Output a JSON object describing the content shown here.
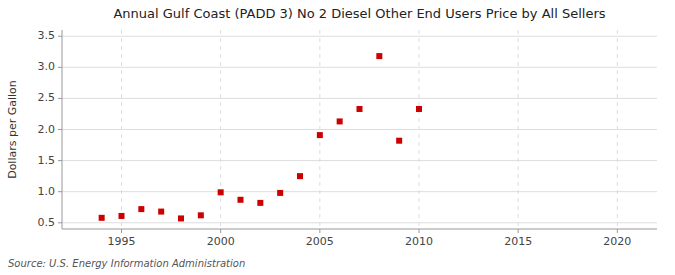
{
  "chart_data": {
    "type": "scatter",
    "title": "Annual Gulf Coast (PADD 3) No 2 Diesel Other End Users Price by All Sellers",
    "y_label": "Dollars per Gallon",
    "source": "Source: U.S. Energy Information Administration",
    "x": [
      1994,
      1995,
      1996,
      1997,
      1998,
      1999,
      2000,
      2001,
      2002,
      2003,
      2004,
      2005,
      2006,
      2007,
      2008,
      2009,
      2010
    ],
    "values": [
      0.58,
      0.61,
      0.72,
      0.68,
      0.57,
      0.62,
      0.99,
      0.87,
      0.82,
      0.98,
      1.25,
      1.91,
      2.13,
      2.33,
      3.18,
      1.82,
      2.33
    ],
    "color": "#cc0000",
    "marker": "square",
    "xlim": [
      1992,
      2022
    ],
    "ylim": [
      0.4,
      3.6
    ],
    "xticks": [
      1995,
      2000,
      2005,
      2010,
      2015,
      2020
    ],
    "yticks": [
      0.5,
      {
        "value": 1.0,
        "label": "1.0"
      },
      1.5,
      {
        "value": 2.0,
        "label": "2.0"
      },
      2.5,
      {
        "value": 3.0,
        "label": "3.0"
      },
      3.5
    ],
    "grid": true
  }
}
